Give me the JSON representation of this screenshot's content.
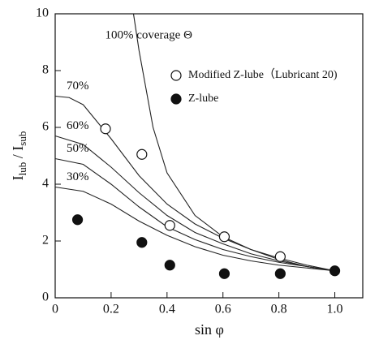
{
  "chart_data": {
    "type": "scatter",
    "xlabel": "sin φ",
    "ylabel": [
      "I",
      "lub",
      " / I",
      "sub"
    ],
    "xlim": [
      0,
      1.1
    ],
    "ylim": [
      0,
      10
    ],
    "xticks": [
      0,
      0.2,
      0.4,
      0.6,
      0.8,
      {
        "value": 1,
        "label": "1.0"
      }
    ],
    "yticks": [
      0,
      2,
      4,
      6,
      8,
      10
    ],
    "series": [
      {
        "name": "Modified Z-lube（Lubricant 20)",
        "marker": "open",
        "color": "#111111",
        "x": [
          0.18,
          0.31,
          0.41,
          0.605,
          0.805
        ],
        "values": [
          5.95,
          5.05,
          2.55,
          2.15,
          1.45
        ]
      },
      {
        "name": "Z-lube",
        "marker": "filled",
        "color": "#111111",
        "x": [
          0.08,
          0.31,
          0.41,
          0.605,
          0.805,
          1.0
        ],
        "values": [
          2.75,
          1.95,
          1.15,
          0.85,
          0.85,
          0.95
        ]
      }
    ],
    "curves": [
      {
        "name": "100% coverage Θ",
        "x": [
          0.28,
          0.3,
          0.35,
          0.4,
          0.5,
          0.6,
          0.7,
          0.8,
          0.9,
          1.0
        ],
        "values": [
          10,
          8.7,
          6.0,
          4.4,
          2.9,
          2.15,
          1.7,
          1.4,
          1.15,
          0.95
        ]
      },
      {
        "name": "70%",
        "x": [
          0,
          0.05,
          0.1,
          0.2,
          0.3,
          0.4,
          0.5,
          0.6,
          0.7,
          0.8,
          0.9,
          1.0
        ],
        "values": [
          7.1,
          7.05,
          6.8,
          5.6,
          4.3,
          3.3,
          2.6,
          2.1,
          1.7,
          1.35,
          1.1,
          0.95
        ]
      },
      {
        "name": "60%",
        "x": [
          0,
          0.1,
          0.2,
          0.3,
          0.4,
          0.5,
          0.6,
          0.7,
          0.8,
          0.9,
          1.0
        ],
        "values": [
          5.7,
          5.4,
          4.6,
          3.7,
          2.9,
          2.3,
          1.9,
          1.55,
          1.3,
          1.1,
          0.95
        ]
      },
      {
        "name": "50%",
        "x": [
          0,
          0.1,
          0.2,
          0.3,
          0.4,
          0.5,
          0.6,
          0.7,
          0.8,
          0.9,
          1.0
        ],
        "values": [
          4.9,
          4.7,
          4.0,
          3.2,
          2.5,
          2.05,
          1.7,
          1.45,
          1.25,
          1.1,
          0.95
        ]
      },
      {
        "name": "30%",
        "x": [
          0,
          0.1,
          0.2,
          0.3,
          0.4,
          0.5,
          0.6,
          0.7,
          0.8,
          0.9,
          1.0
        ],
        "values": [
          3.9,
          3.75,
          3.3,
          2.7,
          2.2,
          1.8,
          1.5,
          1.3,
          1.15,
          1.05,
          0.95
        ]
      }
    ]
  }
}
